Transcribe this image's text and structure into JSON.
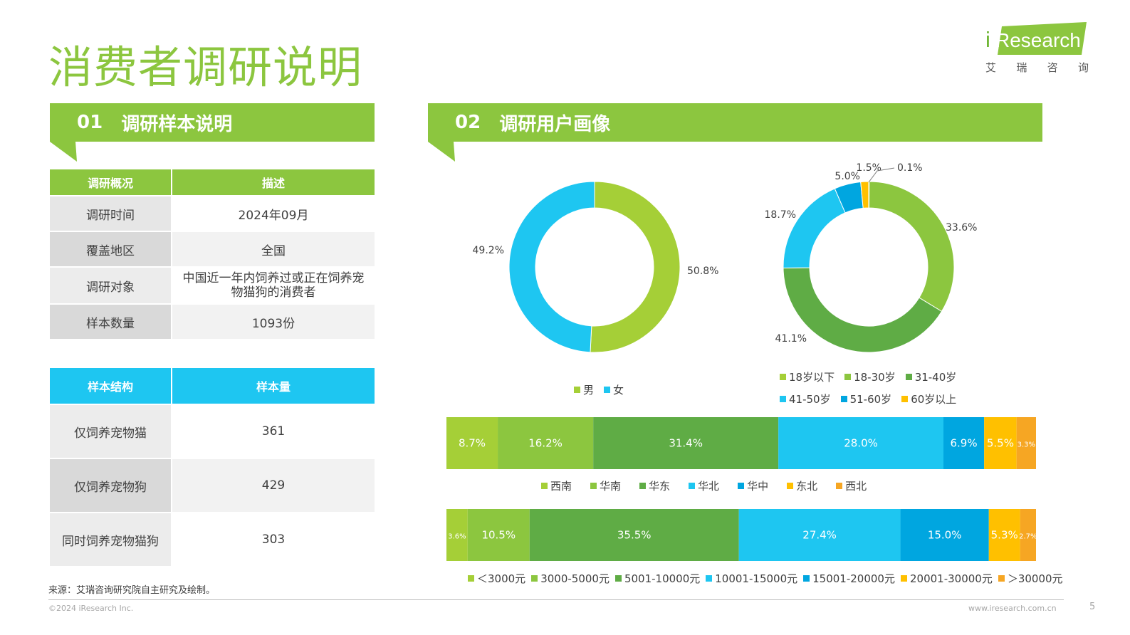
{
  "page": {
    "title": "消费者调研说明",
    "page_number": "5"
  },
  "logo": {
    "brand": "iResearch",
    "sub": [
      "艾",
      "瑞",
      "咨",
      "询"
    ]
  },
  "section1": {
    "num": "01",
    "title": "调研样本说明"
  },
  "section2": {
    "num": "02",
    "title": "调研用户画像"
  },
  "overview_table": {
    "headers": [
      "调研概况",
      "描述"
    ],
    "rows": [
      [
        "调研时间",
        "2024年09月"
      ],
      [
        "覆盖地区",
        "全国"
      ],
      [
        "调研对象",
        "中国近一年内饲养过或正在饲养宠物猫狗的消费者"
      ],
      [
        "样本数量",
        "1093份"
      ]
    ]
  },
  "sample_table": {
    "headers": [
      "样本结构",
      "样本量"
    ],
    "rows": [
      [
        "仅饲养宠物猫",
        "361"
      ],
      [
        "仅饲养宠物狗",
        "429"
      ],
      [
        "同时饲养宠物猫狗",
        "303"
      ]
    ]
  },
  "source_note": "来源：艾瑞咨询研究院自主研究及绘制。",
  "footer": {
    "left": "©2024 iResearch Inc.",
    "right": "www.iresearch.com.cn"
  },
  "chart_data": [
    {
      "type": "pie",
      "variant": "donut",
      "categories": [
        "男",
        "女"
      ],
      "values": [
        50.8,
        49.2
      ],
      "labels": [
        "50.8%",
        "49.2%"
      ],
      "colors": [
        "#a5cf37",
        "#1ec6f1"
      ],
      "legend": "bottom"
    },
    {
      "type": "pie",
      "variant": "donut",
      "categories": [
        "18岁以下",
        "18-30岁",
        "31-40岁",
        "41-50岁",
        "51-60岁",
        "60岁以上"
      ],
      "values": [
        0.1,
        33.6,
        41.1,
        18.7,
        5.0,
        1.5
      ],
      "labels": [
        "0.1%",
        "33.6%",
        "41.1%",
        "18.7%",
        "5.0%",
        "1.5%"
      ],
      "colors": [
        "#a5cf37",
        "#8cc63f",
        "#5fac45",
        "#1ec6f1",
        "#00a6e0",
        "#ffc000"
      ],
      "legend": "bottom"
    },
    {
      "type": "bar",
      "variant": "stacked-horizontal-100",
      "categories": [
        "西南",
        "华南",
        "华东",
        "华北",
        "华中",
        "东北",
        "西北"
      ],
      "values": [
        8.7,
        16.2,
        31.4,
        28.0,
        6.9,
        5.5,
        3.3
      ],
      "labels": [
        "8.7%",
        "16.2%",
        "31.4%",
        "28.0%",
        "6.9%",
        "5.5%",
        "3.3%"
      ],
      "colors": [
        "#a5cf37",
        "#8cc63f",
        "#5fac45",
        "#1ec6f1",
        "#00a6e0",
        "#ffc000",
        "#f6a623"
      ],
      "legend": "bottom"
    },
    {
      "type": "bar",
      "variant": "stacked-horizontal-100",
      "categories": [
        "＜3000元",
        "3000-5000元",
        "5001-10000元",
        "10001-15000元",
        "15001-20000元",
        "20001-30000元",
        "＞30000元"
      ],
      "values": [
        3.6,
        10.5,
        35.5,
        27.4,
        15.0,
        5.3,
        2.7
      ],
      "labels": [
        "3.6%",
        "10.5%",
        "35.5%",
        "27.4%",
        "15.0%",
        "5.3%",
        "2.7%"
      ],
      "colors": [
        "#a5cf37",
        "#8cc63f",
        "#5fac45",
        "#1ec6f1",
        "#00a6e0",
        "#ffc000",
        "#f6a623"
      ],
      "legend": "bottom"
    }
  ]
}
